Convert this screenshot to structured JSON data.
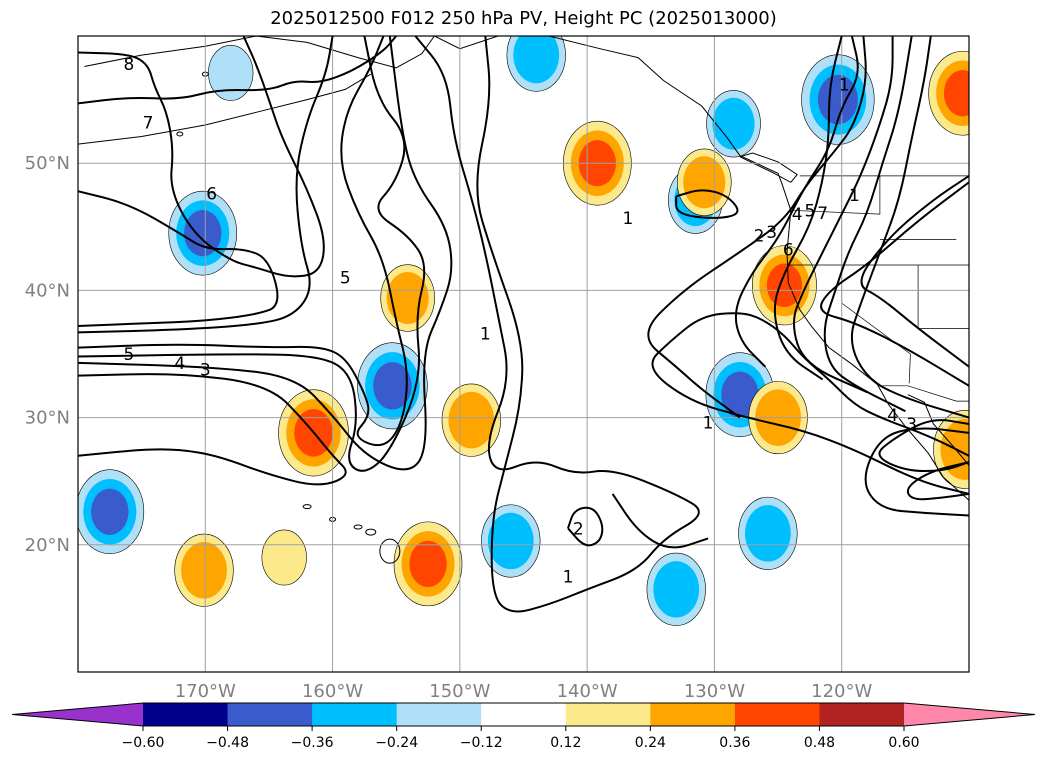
{
  "chart_data": {
    "type": "heatmap",
    "title": "2025012500 F012 250 hPa PV, Height PC (2025013000)",
    "map": {
      "lon_range": [
        -180,
        -110
      ],
      "lat_range": [
        10,
        60
      ],
      "grid": true,
      "lon_ticks": [
        -170,
        -160,
        -150,
        -140,
        -130,
        -120
      ],
      "lon_tick_labels": [
        "170°W",
        "160°W",
        "150°W",
        "140°W",
        "130°W",
        "120°W"
      ],
      "lat_ticks": [
        20,
        30,
        40,
        50
      ],
      "lat_tick_labels": [
        "20°N",
        "30°N",
        "40°N",
        "50°N"
      ]
    },
    "colorbar": {
      "orientation": "horizontal",
      "extend": "both",
      "levels": [
        -0.72,
        -0.6,
        -0.48,
        -0.36,
        -0.24,
        -0.12,
        0.12,
        0.24,
        0.36,
        0.48,
        0.6,
        0.72
      ],
      "tick_labels": [
        "−0.60",
        "−0.48",
        "−0.36",
        "−0.24",
        "−0.12",
        "0.12",
        "0.24",
        "0.36",
        "0.48",
        "0.60"
      ],
      "colors": [
        "#9932cc",
        "#00008b",
        "#3a5bcc",
        "#00bfff",
        "#b0e0f8",
        "#ffffff",
        "#fce98b",
        "#ffa500",
        "#ff4500",
        "#b22222",
        "#ff88aa"
      ]
    },
    "pv_anomalies": [
      {
        "lon": -144,
        "lat": 58.5,
        "value": -0.3
      },
      {
        "lon": -139.2,
        "lat": 50.0,
        "value": 0.4
      },
      {
        "lon": -170.2,
        "lat": 44.5,
        "value": -0.4
      },
      {
        "lon": -155.3,
        "lat": 32.5,
        "value": -0.42
      },
      {
        "lon": -161.5,
        "lat": 28.8,
        "value": 0.42
      },
      {
        "lon": -149.1,
        "lat": 29.8,
        "value": 0.3
      },
      {
        "lon": -177.5,
        "lat": 22.6,
        "value": -0.4
      },
      {
        "lon": -152.5,
        "lat": 18.5,
        "value": 0.4
      },
      {
        "lon": -146,
        "lat": 20.3,
        "value": -0.3
      },
      {
        "lon": -133,
        "lat": 16.5,
        "value": -0.3
      },
      {
        "lon": -125.8,
        "lat": 20.9,
        "value": -0.3
      },
      {
        "lon": -128,
        "lat": 31.8,
        "value": -0.4
      },
      {
        "lon": -124.5,
        "lat": 40.4,
        "value": 0.36
      },
      {
        "lon": -125,
        "lat": 30.0,
        "value": 0.3
      },
      {
        "lon": -120.3,
        "lat": 55.0,
        "value": -0.45
      },
      {
        "lon": -110.5,
        "lat": 55.5,
        "value": 0.4
      },
      {
        "lon": -131.5,
        "lat": 47.1,
        "value": -0.25
      },
      {
        "lon": -128.5,
        "lat": 53.1,
        "value": -0.25
      },
      {
        "lon": -130.8,
        "lat": 48.5,
        "value": 0.25
      },
      {
        "lon": -170.1,
        "lat": 18.0,
        "value": 0.3
      },
      {
        "lon": -163.8,
        "lat": 19.0,
        "value": 0.15
      },
      {
        "lon": -154.1,
        "lat": 39.4,
        "value": 0.25
      },
      {
        "lon": -168,
        "lat": 57.1,
        "value": -0.15
      },
      {
        "lon": -110.3,
        "lat": 27.5,
        "value": 0.35
      }
    ],
    "contour_labels": [
      "8",
      "7",
      "6",
      "5",
      "4",
      "3",
      "5",
      "1",
      "1",
      "2",
      "1",
      "1",
      "2",
      "3",
      "4",
      "5",
      "6",
      "7",
      "1",
      "1",
      "4",
      "3"
    ]
  }
}
